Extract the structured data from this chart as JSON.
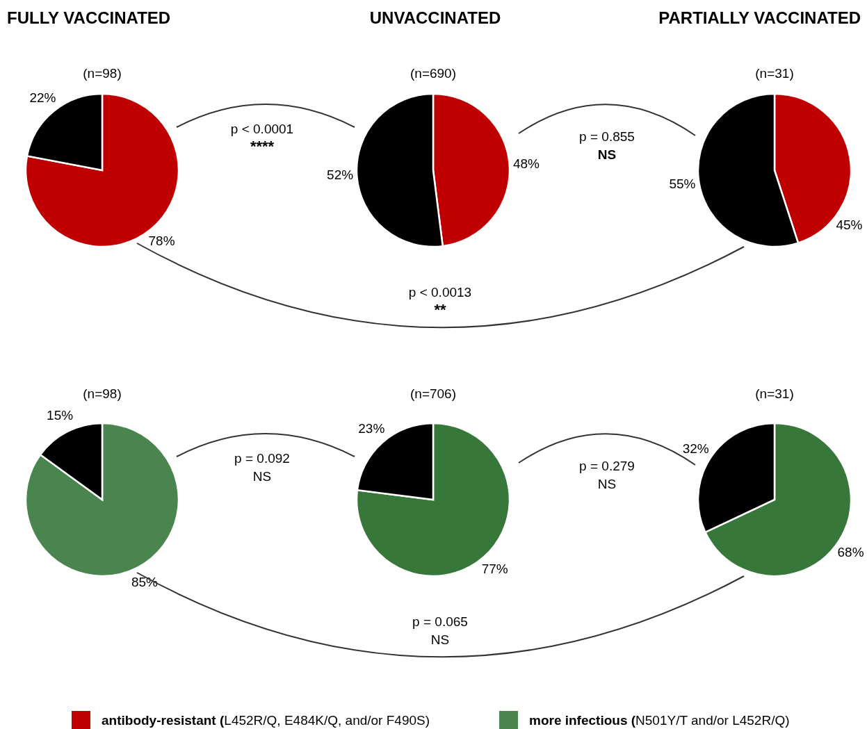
{
  "chart_data": [
    {
      "type": "pie",
      "title": "FULLY VACCINATED",
      "subtitle": "(n=98)",
      "categories": [
        "antibody-resistant (L452R/Q, E484K/Q, and/or F490S)",
        null
      ],
      "values": [
        78,
        22
      ],
      "colors": [
        "#c00000",
        "#000000"
      ],
      "value_labels": [
        "78%",
        "22%"
      ],
      "legend": "bottom"
    },
    {
      "type": "pie",
      "title": "UNVACCINATED",
      "subtitle": "(n=690)",
      "categories": [
        null,
        null
      ],
      "values": [
        48,
        52
      ],
      "colors": [
        "#c00000",
        "#000000"
      ],
      "value_labels": [
        "48%",
        "52%"
      ],
      "annotations": [
        "p < 0.0001",
        "****",
        "p = 0.855",
        "NS",
        "p < 0.0013",
        "**"
      ]
    },
    {
      "type": "pie",
      "title": "PARTIALLY VACCINATED",
      "subtitle": "(n=31)",
      "categories": [
        null,
        null
      ],
      "values": [
        45,
        55
      ],
      "colors": [
        "#c00000",
        "#000000"
      ],
      "value_labels": [
        "45%",
        "55%"
      ]
    },
    {
      "type": "pie",
      "subtitle": "(n=98)",
      "categories": [
        "more infectious (N501Y/T and/or L452R/Q)",
        null
      ],
      "values": [
        85,
        15
      ],
      "colors": [
        "#4a8550",
        "#000000"
      ],
      "value_labels": [
        "85%",
        "15%"
      ],
      "legend": "bottom"
    },
    {
      "type": "pie",
      "subtitle": "(n=706)",
      "categories": [
        null,
        null
      ],
      "values": [
        77,
        23
      ],
      "colors": [
        "#38773a",
        "#000000"
      ],
      "value_labels": [
        "77%",
        "23%"
      ],
      "annotations": [
        "p = 0.092",
        "NS",
        "p = 0.279",
        "NS",
        "p = 0.065",
        "NS"
      ]
    },
    {
      "type": "pie",
      "subtitle": "(n=31)",
      "categories": [
        null,
        null
      ],
      "values": [
        68,
        32
      ],
      "colors": [
        "#38773a",
        "#000000"
      ],
      "value_labels": [
        "68%",
        "32%"
      ]
    }
  ]
}
